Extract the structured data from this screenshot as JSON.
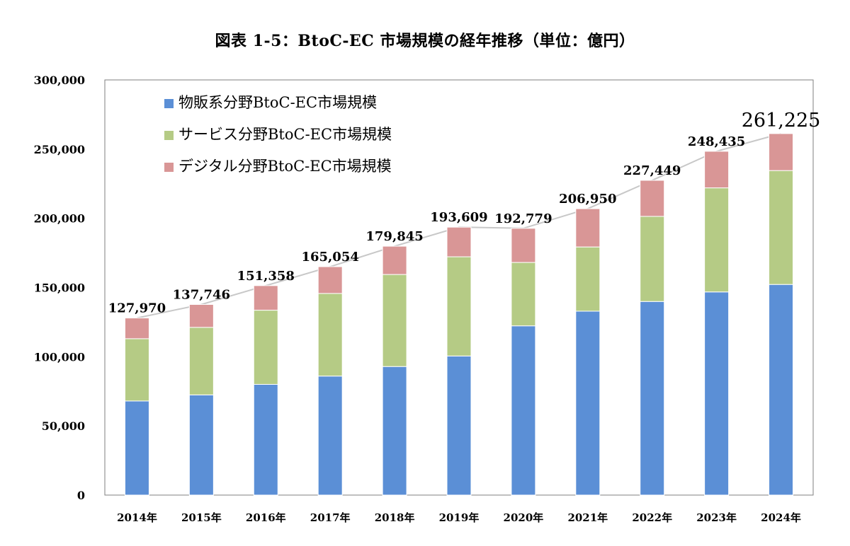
{
  "title": "図表 1-5：BtoC-EC 市場規模の経年推移（単位：億円）",
  "colors": {
    "goods": "#5b8fd6",
    "services": "#b5cb85",
    "digital": "#d99696",
    "total_line": "#c8c8c8",
    "frame": "#7f7f7f"
  },
  "chart_data": {
    "type": "bar",
    "stacked": true,
    "categories": [
      "2014年",
      "2015年",
      "2016年",
      "2017年",
      "2018年",
      "2019年",
      "2020年",
      "2021年",
      "2022年",
      "2023年",
      "2024年"
    ],
    "series": [
      {
        "name": "物販系分野BtoC-EC市場規模",
        "values": [
          68000,
          72400,
          80000,
          86000,
          92900,
          100500,
          122300,
          132900,
          139900,
          146800,
          152200
        ]
      },
      {
        "name": "サービス分野BtoC-EC市場規模",
        "values": [
          45000,
          48800,
          53600,
          59700,
          66500,
          71700,
          45800,
          46400,
          61500,
          75200,
          82300
        ]
      },
      {
        "name": "デジタル分野BtoC-EC市場規模",
        "values": [
          14970,
          16546,
          17758,
          19354,
          20445,
          21409,
          24679,
          27650,
          26049,
          26435,
          26725
        ]
      }
    ],
    "totals": [
      127970,
      137746,
      151358,
      165054,
      179845,
      193609,
      192779,
      206950,
      227449,
      248435,
      261225
    ],
    "total_labels": [
      "127,970",
      "137,746",
      "151,358",
      "165,054",
      "179,845",
      "193,609",
      "192,779",
      "206,950",
      "227,449",
      "248,435",
      "261,225"
    ],
    "y_ticks": [
      "0",
      "50,000",
      "100,000",
      "150,000",
      "200,000",
      "250,000",
      "300,000"
    ],
    "ylim": [
      0,
      300000
    ],
    "legend_position": "top-left inside plot",
    "grid": false
  }
}
